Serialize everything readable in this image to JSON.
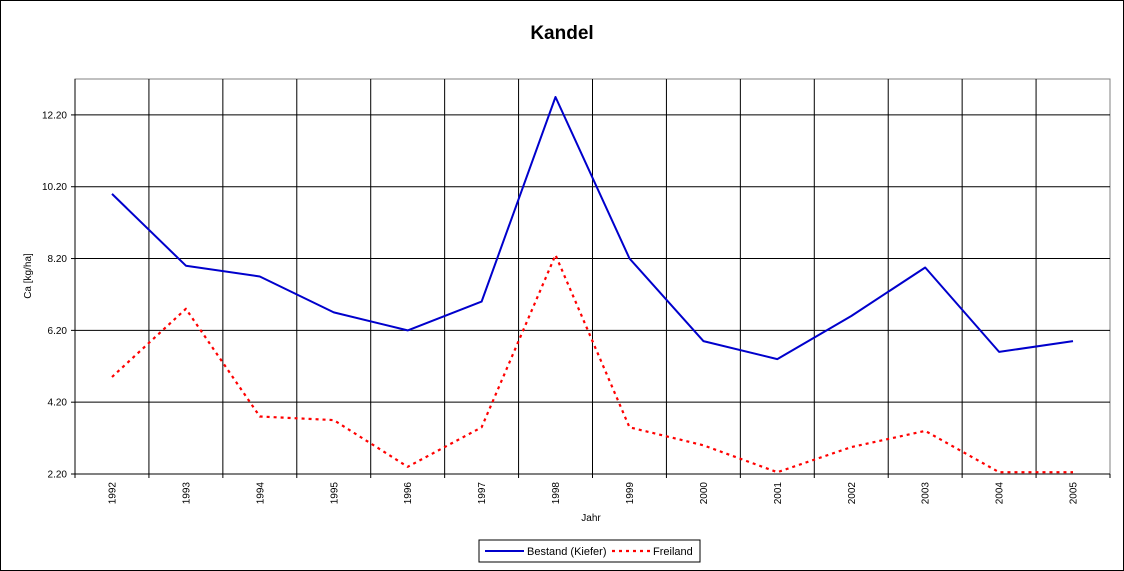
{
  "chart_data": {
    "type": "line",
    "title": "Kandel",
    "xlabel": "Jahr",
    "ylabel": "Ca [kg/ha]",
    "ylim": [
      2.2,
      13.2
    ],
    "yticks": [
      "2.20",
      "4.20",
      "6.20",
      "8.20",
      "10.20",
      "12.20"
    ],
    "grid": true,
    "legend_position": "bottom-center",
    "categories": [
      "1992",
      "1993",
      "1994",
      "1995",
      "1996",
      "1997",
      "1998",
      "1999",
      "2000",
      "2001",
      "2002",
      "2003",
      "2004",
      "2005"
    ],
    "series": [
      {
        "name": "Bestand (Kiefer)",
        "color": "#0000cc",
        "style": "solid",
        "values": [
          10.0,
          8.0,
          7.7,
          6.7,
          6.2,
          7.0,
          12.7,
          8.2,
          5.9,
          5.4,
          6.6,
          7.95,
          5.6,
          5.9
        ]
      },
      {
        "name": "Freiland",
        "color": "#ff0000",
        "style": "dotted",
        "values": [
          4.9,
          6.8,
          3.8,
          3.7,
          2.4,
          3.5,
          8.3,
          3.5,
          3.0,
          2.25,
          2.95,
          3.4,
          2.25,
          2.25
        ]
      }
    ]
  }
}
